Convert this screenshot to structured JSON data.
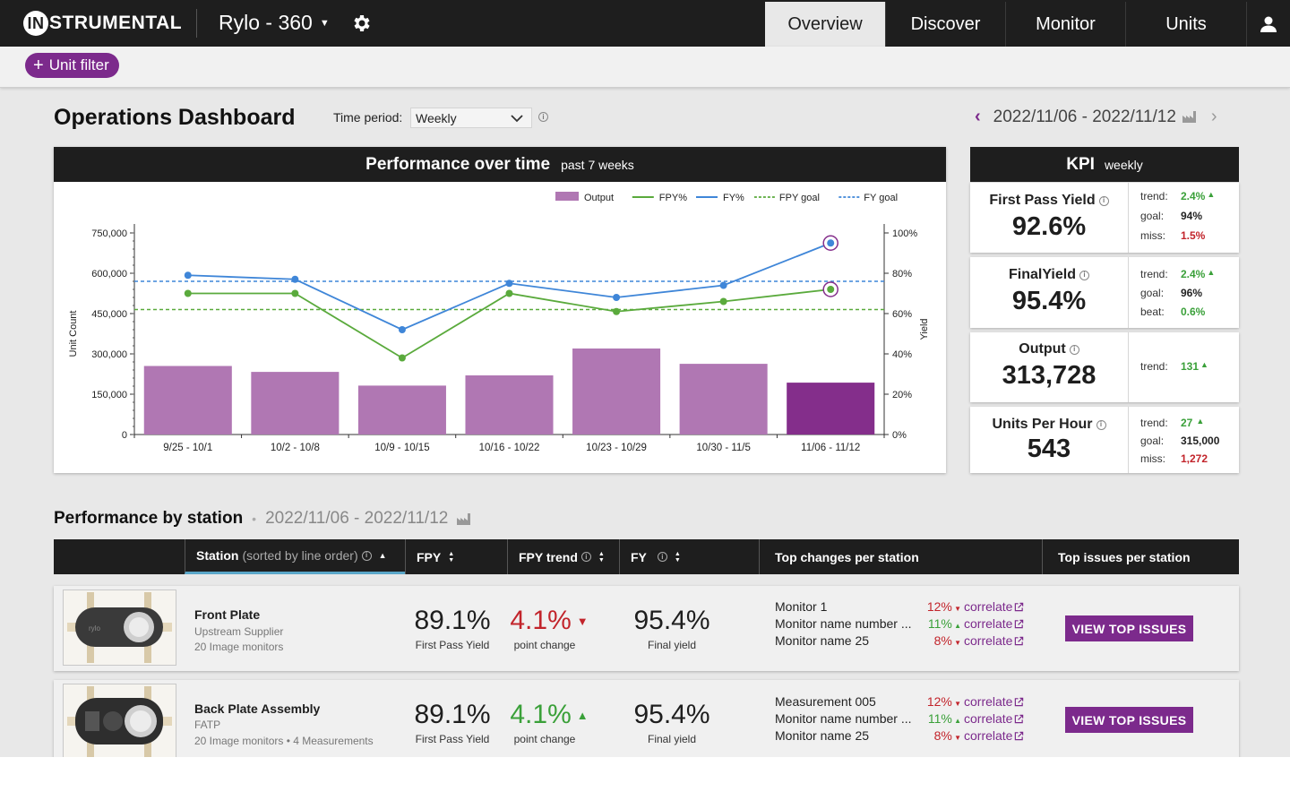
{
  "nav": {
    "logo_badge": "IN",
    "logo_rest": "STRUMENTAL",
    "project": "Rylo - 360",
    "tabs": [
      {
        "label": "Overview",
        "active": true
      },
      {
        "label": "Discover",
        "active": false
      },
      {
        "label": "Monitor",
        "active": false
      },
      {
        "label": "Units",
        "active": false
      }
    ]
  },
  "filter": {
    "add_label": "Unit filter"
  },
  "dashboard": {
    "title": "Operations Dashboard",
    "time_period_label": "Time period:",
    "time_period_value": "Weekly",
    "date_range": "2022/11/06 - 2022/11/12"
  },
  "performance": {
    "title": "Performance over time",
    "subtitle": "past 7 weeks"
  },
  "chart_data": {
    "type": "bar",
    "title": "Performance over time",
    "subtitle": "past 7 weeks",
    "categories": [
      "9/25 - 10/1",
      "10/2 - 10/8",
      "10/9 - 10/15",
      "10/16 - 10/22",
      "10/23 - 10/29",
      "10/30 - 11/5",
      "11/06 - 11/12"
    ],
    "ylabel": "Unit Count",
    "y2label": "Yield",
    "ylim": [
      0,
      750000
    ],
    "y2lim": [
      0,
      100
    ],
    "yticks": [
      "0",
      "150,000",
      "300,000",
      "450,000",
      "600,000",
      "750,000"
    ],
    "y2ticks": [
      "0%",
      "20%",
      "40%",
      "60%",
      "80%",
      "100%"
    ],
    "legend_position": "top-right",
    "series": [
      {
        "name": "Output",
        "kind": "bar",
        "axis": "left",
        "color": "#b077b3",
        "highlight_color": "#842e8b",
        "values": [
          255000,
          233000,
          182000,
          220000,
          320000,
          263000,
          193000
        ]
      },
      {
        "name": "FPY%",
        "kind": "line",
        "axis": "right",
        "color": "#5aaa3c",
        "values": [
          70,
          70,
          38,
          70,
          61,
          66,
          72
        ]
      },
      {
        "name": "FY%",
        "kind": "line",
        "axis": "right",
        "color": "#3f86d8",
        "values": [
          79,
          77,
          52,
          75,
          68,
          74,
          95
        ]
      },
      {
        "name": "FPY goal",
        "kind": "goal",
        "axis": "right",
        "color": "#5aaa3c",
        "value": 62
      },
      {
        "name": "FY goal",
        "kind": "goal",
        "axis": "right",
        "color": "#3f86d8",
        "value": 76
      }
    ]
  },
  "kpi": {
    "title": "KPI",
    "subtitle": "weekly",
    "cards": [
      {
        "name": "First Pass Yield",
        "value": "92.6%",
        "rows": [
          {
            "k": "trend:",
            "v": "2.4%",
            "cls": "green",
            "arrow": "up"
          },
          {
            "k": "goal:",
            "v": "94%",
            "cls": "dark",
            "arrow": ""
          },
          {
            "k": "miss:",
            "v": "1.5%",
            "cls": "red",
            "arrow": ""
          }
        ]
      },
      {
        "name": "FinalYield",
        "value": "95.4%",
        "rows": [
          {
            "k": "trend:",
            "v": "2.4%",
            "cls": "green",
            "arrow": "up"
          },
          {
            "k": "goal:",
            "v": "96%",
            "cls": "dark",
            "arrow": ""
          },
          {
            "k": "beat:",
            "v": "0.6%",
            "cls": "green",
            "arrow": ""
          }
        ]
      },
      {
        "name": "Output",
        "value": "313,728",
        "rows": [
          {
            "k": "trend:",
            "v": "131",
            "cls": "green",
            "arrow": "up"
          }
        ]
      },
      {
        "name": "Units Per Hour",
        "value": "543",
        "rows": [
          {
            "k": "trend:",
            "v": "27",
            "cls": "green",
            "arrow": "up"
          },
          {
            "k": "goal:",
            "v": "315,000",
            "cls": "dark",
            "arrow": ""
          },
          {
            "k": "miss:",
            "v": "1,272",
            "cls": "red",
            "arrow": ""
          }
        ]
      }
    ]
  },
  "stations": {
    "title": "Performance by station",
    "date_range": "2022/11/06 - 2022/11/12",
    "headers": {
      "station": "Station",
      "station_note": "(sorted by line order)",
      "fpy": "FPY",
      "fpy_trend": "FPY trend",
      "fy": "FY",
      "top_changes": "Top changes per station",
      "top_issues": "Top issues per station"
    },
    "rows": [
      {
        "name": "Front Plate",
        "sub1": "Upstream Supplier",
        "sub2": "20 Image monitors",
        "fpy": "89.1%",
        "fpy_caption": "First Pass Yield",
        "trend": "4.1%",
        "trend_dir": "down",
        "trend_caption": "point change",
        "fy": "95.4%",
        "fy_caption": "Final yield",
        "thumb_label": "rylo",
        "monitors": [
          {
            "name": "Monitor 1",
            "pct": "12%",
            "dir": "down",
            "link": "correlate"
          },
          {
            "name": "Monitor name number ...",
            "pct": "11%",
            "dir": "up",
            "link": "correlate"
          },
          {
            "name": "Monitor name 25",
            "pct": "8%",
            "dir": "down",
            "link": "correlate"
          }
        ],
        "button": "VIEW TOP ISSUES"
      },
      {
        "name": "Back Plate Assembly",
        "sub1": "FATP",
        "sub2": "20 Image monitors • 4 Measurements",
        "fpy": "89.1%",
        "fpy_caption": "First Pass Yield",
        "trend": "4.1%",
        "trend_dir": "up",
        "trend_caption": "point change",
        "fy": "95.4%",
        "fy_caption": "Final yield",
        "monitors": [
          {
            "name": "Measurement 005",
            "pct": "12%",
            "dir": "down",
            "link": "correlate"
          },
          {
            "name": "Monitor name number ...",
            "pct": "11%",
            "dir": "up",
            "link": "correlate"
          },
          {
            "name": "Monitor name 25",
            "pct": "8%",
            "dir": "down",
            "link": "correlate"
          }
        ],
        "button": "VIEW TOP ISSUES"
      }
    ]
  },
  "colors": {
    "brand": "#7c2a8c",
    "header": "#1e1e1e",
    "up": "#3aa039",
    "down": "#c2242b",
    "accent_underline": "#5aa6c8"
  },
  "icons": [
    "gear-icon",
    "user-icon",
    "plus-icon",
    "chevron-down-icon",
    "info-icon",
    "chevron-left-icon",
    "chevron-right-icon",
    "factory-icon",
    "sort-icon",
    "external-link-icon"
  ]
}
